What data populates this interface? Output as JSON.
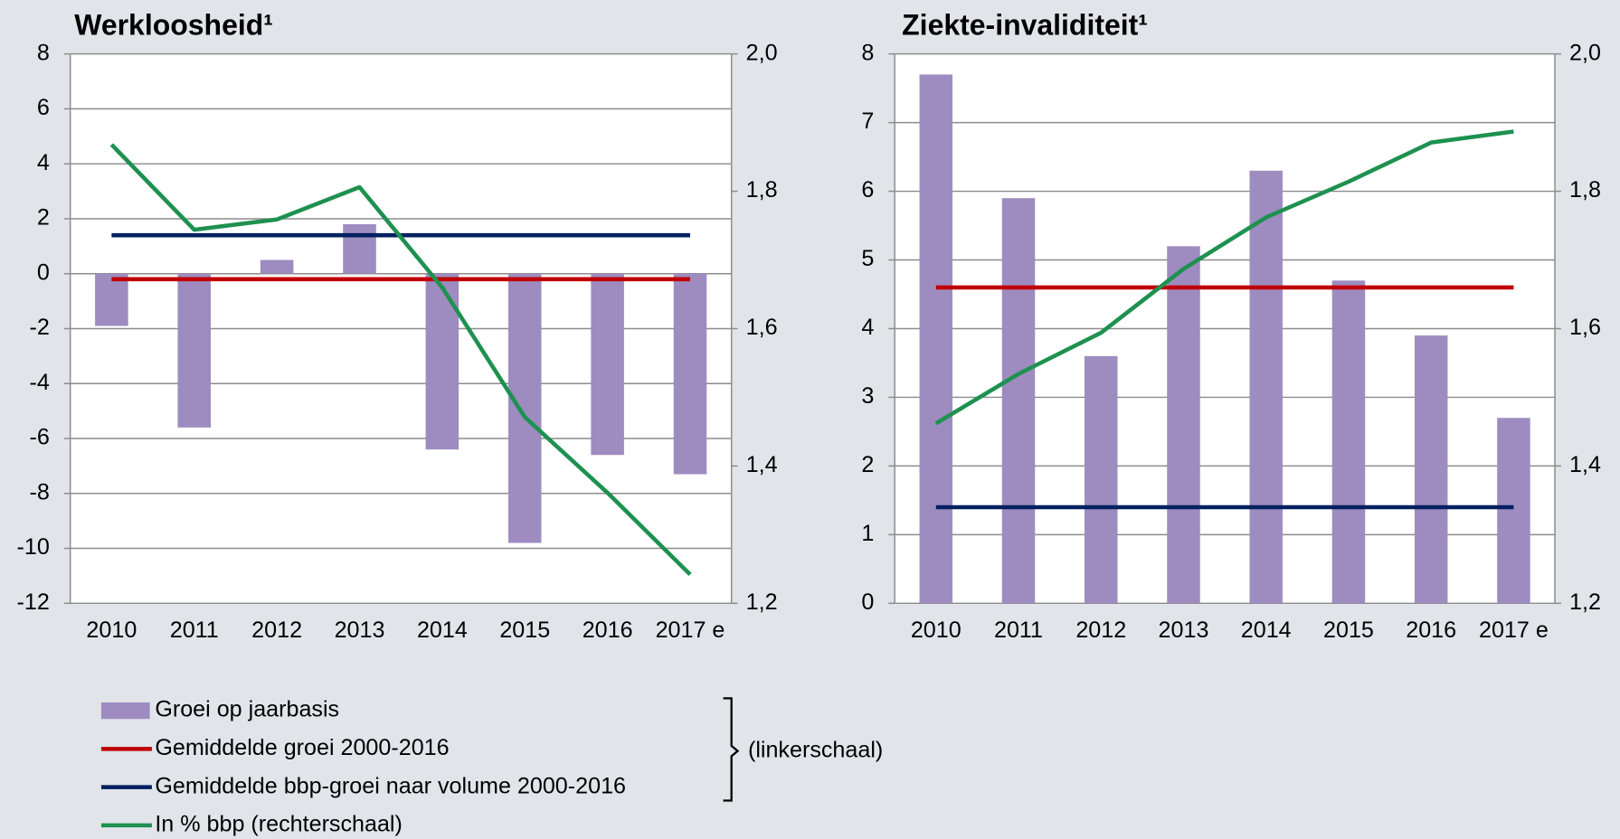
{
  "chart_data": [
    {
      "type": "bar",
      "title": "Werkloosheid¹",
      "categories": [
        "2010",
        "2011",
        "2012",
        "2013",
        "2014",
        "2015",
        "2016",
        "2017 e"
      ],
      "ylim": [
        -12,
        8
      ],
      "yticks": [
        -12,
        -10,
        -8,
        -6,
        -4,
        -2,
        0,
        2,
        4,
        6,
        8
      ],
      "y2lim": [
        1.2,
        2.0
      ],
      "y2ticks": [
        {
          "value": 1.2,
          "label": "1,2"
        },
        {
          "value": 1.4,
          "label": "1,4"
        },
        {
          "value": 1.6,
          "label": "1,6"
        },
        {
          "value": 1.8,
          "label": "1,8"
        },
        {
          "value": 2.0,
          "label": "2,0"
        }
      ],
      "grid": true,
      "series": [
        {
          "name": "Groei op jaarbasis",
          "type": "bar",
          "color": "#9e8cc0",
          "values": [
            -1.9,
            -5.6,
            0.5,
            1.8,
            -6.4,
            -9.8,
            -6.6,
            -7.3
          ]
        },
        {
          "name": "Gemiddelde groei 2000-2016",
          "type": "line",
          "color": "#c00000",
          "values": [
            -0.2,
            -0.2,
            -0.2,
            -0.2,
            -0.2,
            -0.2,
            -0.2,
            -0.2
          ]
        },
        {
          "name": "Gemiddelde bbp-groei naar volume 2000-2016",
          "type": "line",
          "color": "#002060",
          "values": [
            1.4,
            1.4,
            1.4,
            1.4,
            1.4,
            1.4,
            1.4,
            1.4
          ]
        },
        {
          "name": "In % bbp (rechterschaal)",
          "type": "line",
          "axis": "y2",
          "color": "#1e9150",
          "values": [
            1.868,
            1.744,
            1.759,
            1.806,
            1.66,
            1.471,
            1.361,
            1.242
          ]
        }
      ]
    },
    {
      "type": "bar",
      "title": "Ziekte-invaliditeit¹",
      "categories": [
        "2010",
        "2011",
        "2012",
        "2013",
        "2014",
        "2015",
        "2016",
        "2017 e"
      ],
      "ylim": [
        0,
        8
      ],
      "yticks": [
        0,
        1,
        2,
        3,
        4,
        5,
        6,
        7,
        8
      ],
      "y2lim": [
        1.2,
        2.0
      ],
      "y2ticks": [
        {
          "value": 1.2,
          "label": "1,2"
        },
        {
          "value": 1.4,
          "label": "1,4"
        },
        {
          "value": 1.6,
          "label": "1,6"
        },
        {
          "value": 1.8,
          "label": "1,8"
        },
        {
          "value": 2.0,
          "label": "2,0"
        }
      ],
      "grid": true,
      "series": [
        {
          "name": "Groei op jaarbasis",
          "type": "bar",
          "color": "#9e8cc0",
          "values": [
            7.7,
            5.9,
            3.6,
            5.2,
            6.3,
            4.7,
            3.9,
            2.7
          ]
        },
        {
          "name": "Gemiddelde groei 2000-2016",
          "type": "line",
          "color": "#c00000",
          "values": [
            4.6,
            4.6,
            4.6,
            4.6,
            4.6,
            4.6,
            4.6,
            4.6
          ]
        },
        {
          "name": "Gemiddelde bbp-groei naar volume 2000-2016",
          "type": "line",
          "color": "#002060",
          "values": [
            1.4,
            1.4,
            1.4,
            1.4,
            1.4,
            1.4,
            1.4,
            1.4
          ]
        },
        {
          "name": "In % bbp (rechterschaal)",
          "type": "line",
          "axis": "y2",
          "color": "#1e9150",
          "values": [
            1.462,
            1.534,
            1.594,
            1.687,
            1.762,
            1.814,
            1.871,
            1.887
          ]
        }
      ]
    }
  ],
  "legend_note": "(linkerschaal)"
}
